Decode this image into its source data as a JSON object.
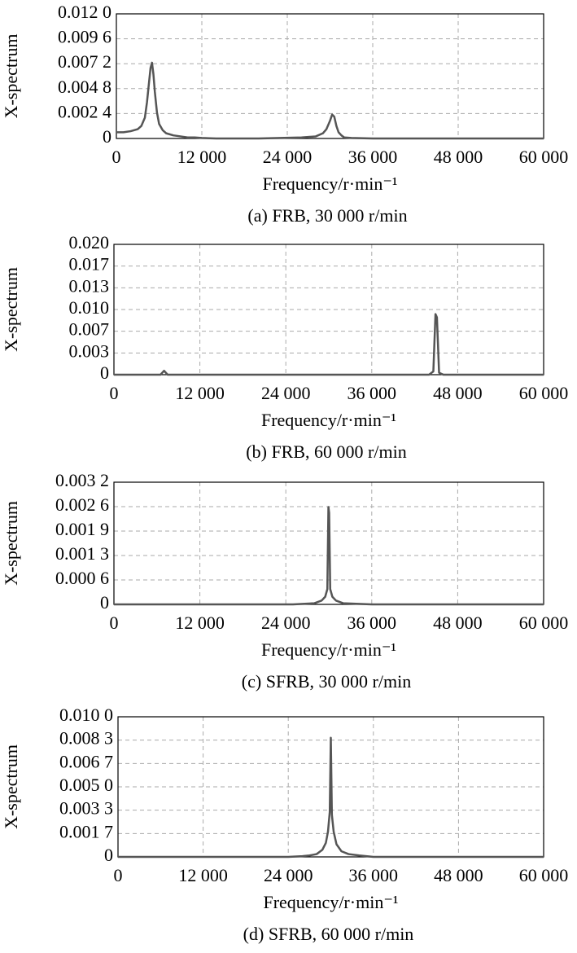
{
  "chart_data": [
    {
      "type": "line",
      "title": "(a) FRB, 30 000 r/min",
      "xlabel": "Frequency/r·min⁻¹",
      "ylabel": "X-spectrum",
      "color": "#555555",
      "grid": true,
      "x": [
        0,
        1000,
        2000,
        3000,
        3500,
        4000,
        4300,
        4600,
        4800,
        5000,
        5200,
        5400,
        5700,
        6000,
        6500,
        7000,
        8000,
        9000,
        10000,
        11000,
        12000,
        14000,
        20000,
        26000,
        28000,
        29000,
        29500,
        30000,
        30300,
        30600,
        30900,
        31200,
        31600,
        32000,
        33000,
        36000,
        48000,
        60000
      ],
      "values": [
        0.0006,
        0.0006,
        0.0007,
        0.0009,
        0.0012,
        0.002,
        0.0035,
        0.0055,
        0.0068,
        0.0073,
        0.0062,
        0.0045,
        0.0025,
        0.0014,
        0.0008,
        0.0005,
        0.0003,
        0.0002,
        0.0001,
        0.0001,
        5e-05,
        0,
        0,
        0.0001,
        0.0002,
        0.0005,
        0.0009,
        0.0017,
        0.0023,
        0.0021,
        0.0012,
        0.0006,
        0.0003,
        0.0001,
        5e-05,
        0,
        0,
        0
      ],
      "xlim": [
        0,
        60000
      ],
      "xticks": [
        0,
        {
          "value": 12000,
          "label": "12 000"
        },
        {
          "value": 24000,
          "label": "24 000"
        },
        {
          "value": 36000,
          "label": "36 000"
        },
        {
          "value": 48000,
          "label": "48 000"
        },
        {
          "value": 60000,
          "label": "60 000"
        }
      ],
      "ylim": [
        0,
        0.012
      ],
      "yticks": [
        0,
        {
          "value": 0.0024,
          "label": "0.002 4"
        },
        {
          "value": 0.0048,
          "label": "0.004 8"
        },
        {
          "value": 0.0072,
          "label": "0.007 2"
        },
        {
          "value": 0.0096,
          "label": "0.009 6"
        },
        {
          "value": 0.012,
          "label": "0.012 0"
        }
      ]
    },
    {
      "type": "line",
      "title": "(b) FRB, 60 000 r/min",
      "xlabel": "Frequency/r·min⁻¹",
      "ylabel": "X-spectrum",
      "color": "#555555",
      "grid": true,
      "x": [
        0,
        6500,
        7000,
        7500,
        20000,
        44000,
        44600,
        44900,
        45100,
        45400,
        46000,
        60000
      ],
      "values": [
        0,
        0,
        0.0006,
        0,
        0,
        0,
        0.0005,
        0.0093,
        0.0088,
        0.0003,
        0,
        0
      ],
      "xlim": [
        0,
        60000
      ],
      "xticks": [
        0,
        {
          "value": 12000,
          "label": "12 000"
        },
        {
          "value": 24000,
          "label": "24 000"
        },
        {
          "value": 36000,
          "label": "36 000"
        },
        {
          "value": 48000,
          "label": "48 000"
        },
        {
          "value": 60000,
          "label": "60 000"
        }
      ],
      "ylim": [
        0,
        0.02
      ],
      "yticks": [
        0,
        {
          "value": 0.003333,
          "label": "0.003"
        },
        {
          "value": 0.006667,
          "label": "0.007"
        },
        {
          "value": 0.01,
          "label": "0.010"
        },
        {
          "value": 0.013333,
          "label": "0.013"
        },
        {
          "value": 0.016667,
          "label": "0.017"
        },
        {
          "value": 0.02,
          "label": "0.020"
        }
      ]
    },
    {
      "type": "line",
      "title": "(c) SFRB, 30 000 r/min",
      "xlabel": "Frequency/r·min⁻¹",
      "ylabel": "X-spectrum",
      "color": "#555555",
      "grid": true,
      "x": [
        0,
        25000,
        28000,
        29000,
        29500,
        29800,
        29950,
        30050,
        30200,
        30500,
        31000,
        32000,
        36000,
        60000
      ],
      "values": [
        0,
        0,
        3e-05,
        0.0001,
        0.0002,
        0.0004,
        0.00255,
        0.0024,
        0.0004,
        0.0002,
        0.0001,
        3e-05,
        0,
        0
      ],
      "xlim": [
        0,
        60000
      ],
      "xticks": [
        0,
        {
          "value": 12000,
          "label": "12 000"
        },
        {
          "value": 24000,
          "label": "24 000"
        },
        {
          "value": 36000,
          "label": "36 000"
        },
        {
          "value": 48000,
          "label": "48 000"
        },
        {
          "value": 60000,
          "label": "60 000"
        }
      ],
      "ylim": [
        0,
        0.0032
      ],
      "yticks": [
        0,
        {
          "value": 0.00064,
          "label": "0.000 6"
        },
        {
          "value": 0.00128,
          "label": "0.001 3"
        },
        {
          "value": 0.00192,
          "label": "0.001 9"
        },
        {
          "value": 0.00256,
          "label": "0.002 6"
        },
        {
          "value": 0.0032,
          "label": "0.003 2"
        }
      ]
    },
    {
      "type": "line",
      "title": "(d) SFRB, 60 000 r/min",
      "xlabel": "Frequency/r·min⁻¹",
      "ylabel": "X-spectrum",
      "color": "#555555",
      "grid": true,
      "x": [
        0,
        24000,
        26000,
        27000,
        28000,
        28800,
        29300,
        29600,
        29850,
        30000,
        30150,
        30400,
        30800,
        31500,
        32500,
        34000,
        36000,
        60000
      ],
      "values": [
        0,
        0,
        5e-05,
        0.0001,
        0.0002,
        0.0005,
        0.001,
        0.0018,
        0.0032,
        0.0085,
        0.003,
        0.0018,
        0.0009,
        0.0004,
        0.0002,
        0.0001,
        0,
        0
      ],
      "xlim": [
        0,
        60000
      ],
      "xticks": [
        0,
        {
          "value": 12000,
          "label": "12 000"
        },
        {
          "value": 24000,
          "label": "24 000"
        },
        {
          "value": 36000,
          "label": "36 000"
        },
        {
          "value": 48000,
          "label": "48 000"
        },
        {
          "value": 60000,
          "label": "60 000"
        }
      ],
      "ylim": [
        0,
        0.01
      ],
      "yticks": [
        0,
        {
          "value": 0.001667,
          "label": "0.001 7"
        },
        {
          "value": 0.003333,
          "label": "0.003 3"
        },
        {
          "value": 0.005,
          "label": "0.005 0"
        },
        {
          "value": 0.006667,
          "label": "0.006 7"
        },
        {
          "value": 0.008333,
          "label": "0.008 3"
        },
        {
          "value": 0.01,
          "label": "0.010 0"
        }
      ]
    }
  ]
}
